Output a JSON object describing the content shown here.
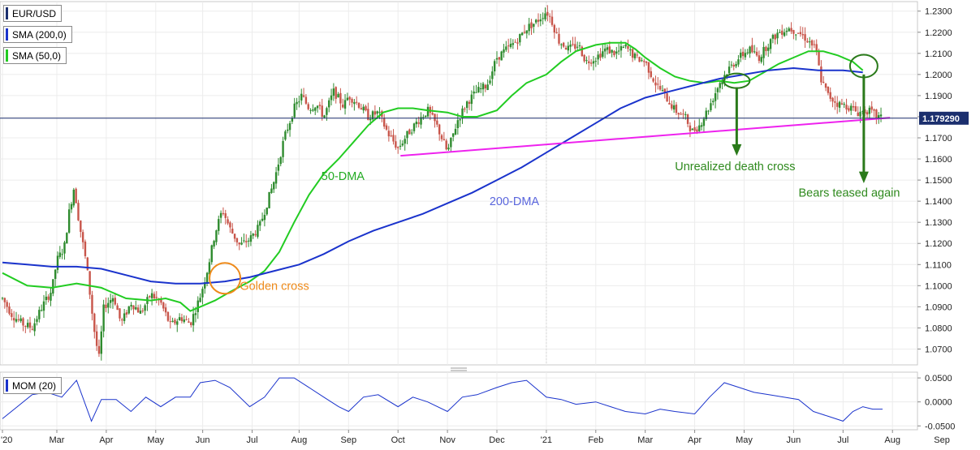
{
  "legends": {
    "main": "EUR/USD",
    "sma200": "SMA (200,0)",
    "sma50": "SMA (50,0)",
    "mom": "MOM (20)"
  },
  "colors": {
    "candle_up": "#2e8b2e",
    "candle_down": "#c8554a",
    "sma50": "#22cc22",
    "sma200": "#1a33cc",
    "trendline": "#ee22ee",
    "mom": "#1a33cc",
    "golden_circle": "#ee8a1a",
    "arrow": "#2a7a1a",
    "price_box": "#1b2f6e"
  },
  "annotations": {
    "golden_cross": "Golden cross",
    "dma50": "50-DMA",
    "dma200": "200-DMA",
    "death_cross": "Unrealized death cross",
    "bears": "Bears teased again"
  },
  "chart_data": {
    "type": "line",
    "title": "",
    "current_price": "1.179290",
    "y_range": [
      1.0625,
      1.2345
    ],
    "y_ticks": [
      "1.0700",
      "1.0800",
      "1.0900",
      "1.1000",
      "1.1100",
      "1.1200",
      "1.1300",
      "1.1400",
      "1.1500",
      "1.1600",
      "1.1700",
      "1.1800",
      "1.1900",
      "1.2000",
      "1.2100",
      "1.2200",
      "1.2300"
    ],
    "mom_range": [
      -0.058,
      0.062
    ],
    "mom_ticks": [
      "0.0500",
      "0.0000",
      "-0.0500"
    ],
    "x_ticks": [
      "'20",
      "Mar",
      "Apr",
      "May",
      "Jun",
      "Jul",
      "Aug",
      "Sep",
      "Oct",
      "Nov",
      "Dec",
      "'21",
      "Feb",
      "Mar",
      "Apr",
      "May",
      "Jun",
      "Jul",
      "Aug",
      "Sep"
    ],
    "x_tick_month_index": [
      0.0,
      1.1,
      2.1,
      3.1,
      4.05,
      5.05,
      6.0,
      7.0,
      8.0,
      9.0,
      10.0,
      11.0,
      12.0,
      13.0,
      14.0,
      15.0,
      16.0,
      17.0,
      18.0,
      19.0
    ],
    "price_path": [
      [
        0.0,
        1.094
      ],
      [
        0.2,
        1.086
      ],
      [
        0.4,
        1.082
      ],
      [
        0.6,
        1.08
      ],
      [
        0.8,
        1.09
      ],
      [
        1.0,
        1.098
      ],
      [
        1.1,
        1.112
      ],
      [
        1.25,
        1.118
      ],
      [
        1.35,
        1.135
      ],
      [
        1.45,
        1.147
      ],
      [
        1.55,
        1.13
      ],
      [
        1.7,
        1.11
      ],
      [
        1.85,
        1.08
      ],
      [
        1.95,
        1.065
      ],
      [
        2.05,
        1.09
      ],
      [
        2.25,
        1.095
      ],
      [
        2.4,
        1.082
      ],
      [
        2.6,
        1.092
      ],
      [
        2.8,
        1.087
      ],
      [
        3.0,
        1.096
      ],
      [
        3.2,
        1.092
      ],
      [
        3.4,
        1.081
      ],
      [
        3.6,
        1.085
      ],
      [
        3.8,
        1.082
      ],
      [
        4.0,
        1.095
      ],
      [
        4.15,
        1.108
      ],
      [
        4.3,
        1.125
      ],
      [
        4.45,
        1.136
      ],
      [
        4.6,
        1.127
      ],
      [
        4.8,
        1.119
      ],
      [
        5.0,
        1.122
      ],
      [
        5.2,
        1.128
      ],
      [
        5.5,
        1.15
      ],
      [
        5.7,
        1.17
      ],
      [
        5.9,
        1.184
      ],
      [
        6.05,
        1.19
      ],
      [
        6.2,
        1.184
      ],
      [
        6.35,
        1.186
      ],
      [
        6.5,
        1.18
      ],
      [
        6.7,
        1.192
      ],
      [
        6.9,
        1.185
      ],
      [
        7.0,
        1.19
      ],
      [
        7.2,
        1.186
      ],
      [
        7.4,
        1.18
      ],
      [
        7.6,
        1.182
      ],
      [
        7.8,
        1.172
      ],
      [
        8.0,
        1.165
      ],
      [
        8.2,
        1.172
      ],
      [
        8.4,
        1.178
      ],
      [
        8.6,
        1.183
      ],
      [
        8.8,
        1.175
      ],
      [
        9.0,
        1.163
      ],
      [
        9.2,
        1.178
      ],
      [
        9.4,
        1.187
      ],
      [
        9.6,
        1.192
      ],
      [
        9.8,
        1.195
      ],
      [
        10.0,
        1.208
      ],
      [
        10.2,
        1.212
      ],
      [
        10.4,
        1.216
      ],
      [
        10.6,
        1.222
      ],
      [
        10.8,
        1.225
      ],
      [
        11.0,
        1.23
      ],
      [
        11.1,
        1.226
      ],
      [
        11.25,
        1.216
      ],
      [
        11.45,
        1.212
      ],
      [
        11.65,
        1.214
      ],
      [
        11.8,
        1.206
      ],
      [
        12.0,
        1.208
      ],
      [
        12.2,
        1.212
      ],
      [
        12.4,
        1.21
      ],
      [
        12.6,
        1.213
      ],
      [
        12.8,
        1.208
      ],
      [
        13.0,
        1.206
      ],
      [
        13.2,
        1.196
      ],
      [
        13.4,
        1.19
      ],
      [
        13.6,
        1.183
      ],
      [
        13.8,
        1.18
      ],
      [
        13.95,
        1.173
      ],
      [
        14.1,
        1.176
      ],
      [
        14.3,
        1.185
      ],
      [
        14.5,
        1.196
      ],
      [
        14.7,
        1.203
      ],
      [
        14.9,
        1.208
      ],
      [
        15.1,
        1.212
      ],
      [
        15.3,
        1.208
      ],
      [
        15.5,
        1.215
      ],
      [
        15.7,
        1.22
      ],
      [
        15.9,
        1.222
      ],
      [
        16.1,
        1.22
      ],
      [
        16.3,
        1.216
      ],
      [
        16.45,
        1.212
      ],
      [
        16.55,
        1.198
      ],
      [
        16.7,
        1.19
      ],
      [
        16.9,
        1.186
      ],
      [
        17.1,
        1.185
      ],
      [
        17.3,
        1.182
      ],
      [
        17.5,
        1.183
      ],
      [
        17.7,
        1.18
      ],
      [
        17.8,
        1.179
      ]
    ],
    "series": [
      {
        "name": "SMA (50,0)",
        "points": [
          [
            0.0,
            1.106
          ],
          [
            0.5,
            1.1
          ],
          [
            1.0,
            1.099
          ],
          [
            1.5,
            1.101
          ],
          [
            2.0,
            1.099
          ],
          [
            2.5,
            1.094
          ],
          [
            3.0,
            1.093
          ],
          [
            3.3,
            1.094
          ],
          [
            3.6,
            1.092
          ],
          [
            3.8,
            1.088
          ],
          [
            4.0,
            1.09
          ],
          [
            4.3,
            1.093
          ],
          [
            4.6,
            1.097
          ],
          [
            5.0,
            1.102
          ],
          [
            5.3,
            1.107
          ],
          [
            5.6,
            1.116
          ],
          [
            5.9,
            1.13
          ],
          [
            6.2,
            1.143
          ],
          [
            6.5,
            1.153
          ],
          [
            6.8,
            1.16
          ],
          [
            7.1,
            1.168
          ],
          [
            7.4,
            1.176
          ],
          [
            7.7,
            1.182
          ],
          [
            8.0,
            1.184
          ],
          [
            8.3,
            1.184
          ],
          [
            8.6,
            1.183
          ],
          [
            9.0,
            1.182
          ],
          [
            9.3,
            1.18
          ],
          [
            9.6,
            1.18
          ],
          [
            10.0,
            1.183
          ],
          [
            10.3,
            1.19
          ],
          [
            10.6,
            1.196
          ],
          [
            11.0,
            1.2
          ],
          [
            11.3,
            1.206
          ],
          [
            11.6,
            1.211
          ],
          [
            12.0,
            1.214
          ],
          [
            12.3,
            1.215
          ],
          [
            12.6,
            1.215
          ],
          [
            12.8,
            1.212
          ],
          [
            13.0,
            1.208
          ],
          [
            13.3,
            1.203
          ],
          [
            13.6,
            1.199
          ],
          [
            13.9,
            1.197
          ],
          [
            14.2,
            1.196
          ],
          [
            14.5,
            1.197
          ],
          [
            14.8,
            1.196
          ],
          [
            15.1,
            1.197
          ],
          [
            15.4,
            1.201
          ],
          [
            15.7,
            1.205
          ],
          [
            16.0,
            1.208
          ],
          [
            16.3,
            1.211
          ],
          [
            16.6,
            1.211
          ],
          [
            16.9,
            1.209
          ],
          [
            17.2,
            1.206
          ],
          [
            17.4,
            1.202
          ]
        ]
      },
      {
        "name": "SMA (200,0)",
        "points": [
          [
            0.0,
            1.111
          ],
          [
            0.5,
            1.11
          ],
          [
            1.0,
            1.109
          ],
          [
            1.5,
            1.109
          ],
          [
            2.0,
            1.108
          ],
          [
            2.5,
            1.105
          ],
          [
            3.0,
            1.102
          ],
          [
            3.5,
            1.101
          ],
          [
            4.0,
            1.101
          ],
          [
            4.5,
            1.102
          ],
          [
            5.0,
            1.104
          ],
          [
            5.5,
            1.107
          ],
          [
            6.0,
            1.11
          ],
          [
            6.5,
            1.115
          ],
          [
            7.0,
            1.121
          ],
          [
            7.5,
            1.126
          ],
          [
            8.0,
            1.13
          ],
          [
            8.5,
            1.134
          ],
          [
            9.0,
            1.139
          ],
          [
            9.5,
            1.144
          ],
          [
            10.0,
            1.15
          ],
          [
            10.5,
            1.156
          ],
          [
            11.0,
            1.163
          ],
          [
            11.5,
            1.17
          ],
          [
            12.0,
            1.177
          ],
          [
            12.5,
            1.184
          ],
          [
            13.0,
            1.189
          ],
          [
            13.5,
            1.192
          ],
          [
            14.0,
            1.195
          ],
          [
            14.5,
            1.198
          ],
          [
            15.0,
            1.2
          ],
          [
            15.5,
            1.202
          ],
          [
            16.0,
            1.203
          ],
          [
            16.5,
            1.202
          ],
          [
            17.0,
            1.202
          ],
          [
            17.4,
            1.201
          ]
        ]
      },
      {
        "name": "MOM (20)",
        "points": [
          [
            0.0,
            -0.035
          ],
          [
            0.3,
            -0.01
          ],
          [
            0.6,
            0.015
          ],
          [
            0.9,
            0.02
          ],
          [
            1.2,
            0.01
          ],
          [
            1.5,
            0.045
          ],
          [
            1.8,
            -0.04
          ],
          [
            2.0,
            0.005
          ],
          [
            2.3,
            0.005
          ],
          [
            2.6,
            -0.02
          ],
          [
            2.9,
            0.01
          ],
          [
            3.2,
            -0.01
          ],
          [
            3.5,
            0.01
          ],
          [
            3.8,
            0.01
          ],
          [
            4.0,
            0.04
          ],
          [
            4.3,
            0.045
          ],
          [
            4.6,
            0.03
          ],
          [
            5.0,
            -0.01
          ],
          [
            5.3,
            0.01
          ],
          [
            5.6,
            0.05
          ],
          [
            5.9,
            0.05
          ],
          [
            6.2,
            0.03
          ],
          [
            6.5,
            0.01
          ],
          [
            6.8,
            -0.01
          ],
          [
            7.0,
            -0.02
          ],
          [
            7.3,
            0.01
          ],
          [
            7.6,
            0.015
          ],
          [
            8.0,
            -0.01
          ],
          [
            8.3,
            0.01
          ],
          [
            8.6,
            0.0
          ],
          [
            9.0,
            -0.02
          ],
          [
            9.3,
            0.01
          ],
          [
            9.6,
            0.015
          ],
          [
            10.0,
            0.03
          ],
          [
            10.3,
            0.04
          ],
          [
            10.6,
            0.045
          ],
          [
            11.0,
            0.01
          ],
          [
            11.3,
            0.005
          ],
          [
            11.6,
            -0.005
          ],
          [
            12.0,
            0.0
          ],
          [
            12.3,
            -0.01
          ],
          [
            12.6,
            -0.02
          ],
          [
            13.0,
            -0.025
          ],
          [
            13.3,
            -0.015
          ],
          [
            13.6,
            -0.02
          ],
          [
            14.0,
            -0.025
          ],
          [
            14.3,
            0.01
          ],
          [
            14.6,
            0.04
          ],
          [
            14.9,
            0.03
          ],
          [
            15.2,
            0.02
          ],
          [
            15.5,
            0.015
          ],
          [
            15.8,
            0.01
          ],
          [
            16.1,
            0.005
          ],
          [
            16.4,
            -0.02
          ],
          [
            16.7,
            -0.03
          ],
          [
            17.0,
            -0.04
          ],
          [
            17.2,
            -0.02
          ],
          [
            17.4,
            -0.01
          ],
          [
            17.6,
            -0.015
          ],
          [
            17.8,
            -0.015
          ]
        ]
      }
    ],
    "trendline": [
      [
        8.05,
        1.1615
      ],
      [
        17.95,
        1.1795
      ]
    ]
  }
}
